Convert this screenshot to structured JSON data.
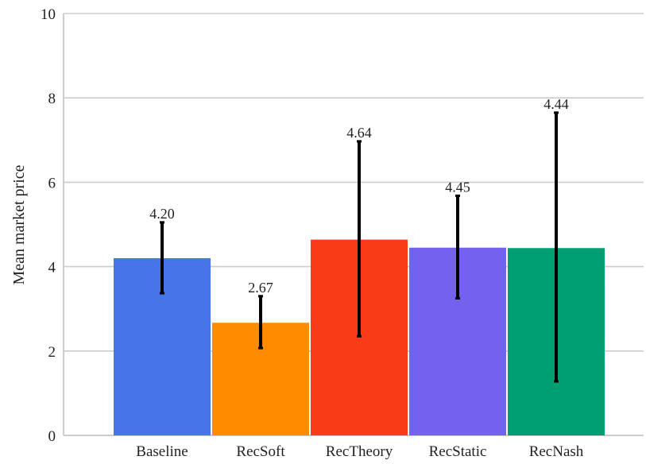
{
  "chart_data": {
    "type": "bar",
    "ylabel": "Mean market price",
    "xlabel": "",
    "ylim": [
      0,
      10
    ],
    "yticks": [
      0,
      2,
      4,
      6,
      8,
      10
    ],
    "grid": true,
    "categories": [
      "Baseline",
      "RecSoft",
      "RecTheory",
      "RecStatic",
      "RecNash"
    ],
    "values": [
      4.2,
      2.67,
      4.64,
      4.45,
      4.44
    ],
    "value_labels": [
      "4.20",
      "2.67",
      "4.64",
      "4.45",
      "4.44"
    ],
    "error_low": [
      3.37,
      2.07,
      2.35,
      3.25,
      1.28
    ],
    "error_high": [
      5.05,
      3.3,
      6.97,
      5.68,
      7.65
    ],
    "colors": [
      "#4575e8",
      "#ff8c00",
      "#f93b18",
      "#7462ee",
      "#009e73"
    ]
  }
}
